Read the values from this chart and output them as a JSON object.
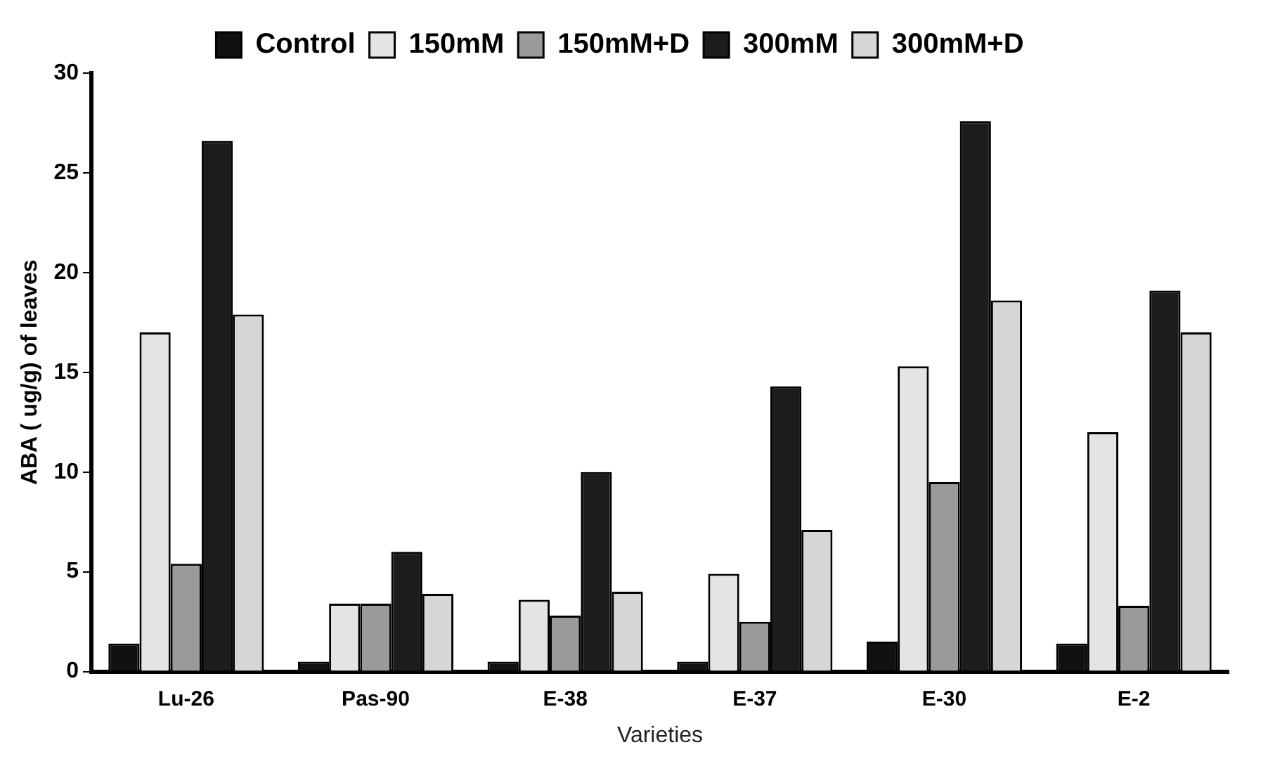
{
  "chart_data": {
    "type": "bar",
    "xlabel": "Varieties",
    "ylabel": "ABA ( ug/g) of leaves",
    "categories": [
      "Lu-26",
      "Pas-90",
      "E-38",
      "E-37",
      "E-30",
      "E-2"
    ],
    "series": [
      {
        "name": "Control",
        "color": "#111111",
        "values": [
          1.4,
          0.5,
          0.5,
          0.5,
          1.5,
          1.4
        ]
      },
      {
        "name": "150mM",
        "color": "#e4e4e4",
        "values": [
          17.0,
          3.4,
          3.6,
          4.9,
          15.3,
          12.0
        ]
      },
      {
        "name": "150mM+D",
        "color": "#9a9a9a",
        "values": [
          5.4,
          3.4,
          2.8,
          2.5,
          9.5,
          3.3
        ]
      },
      {
        "name": "300mM",
        "color": "#1c1c1c",
        "values": [
          26.6,
          6.0,
          10.0,
          14.3,
          27.6,
          19.1
        ]
      },
      {
        "name": "300mM+D",
        "color": "#d6d6d6",
        "values": [
          17.9,
          3.9,
          4.0,
          7.1,
          18.6,
          17.0
        ]
      }
    ],
    "ylim": [
      0,
      30
    ],
    "yticks": [
      0,
      5,
      10,
      15,
      20,
      25,
      30
    ],
    "grid": false,
    "legend": "top"
  }
}
